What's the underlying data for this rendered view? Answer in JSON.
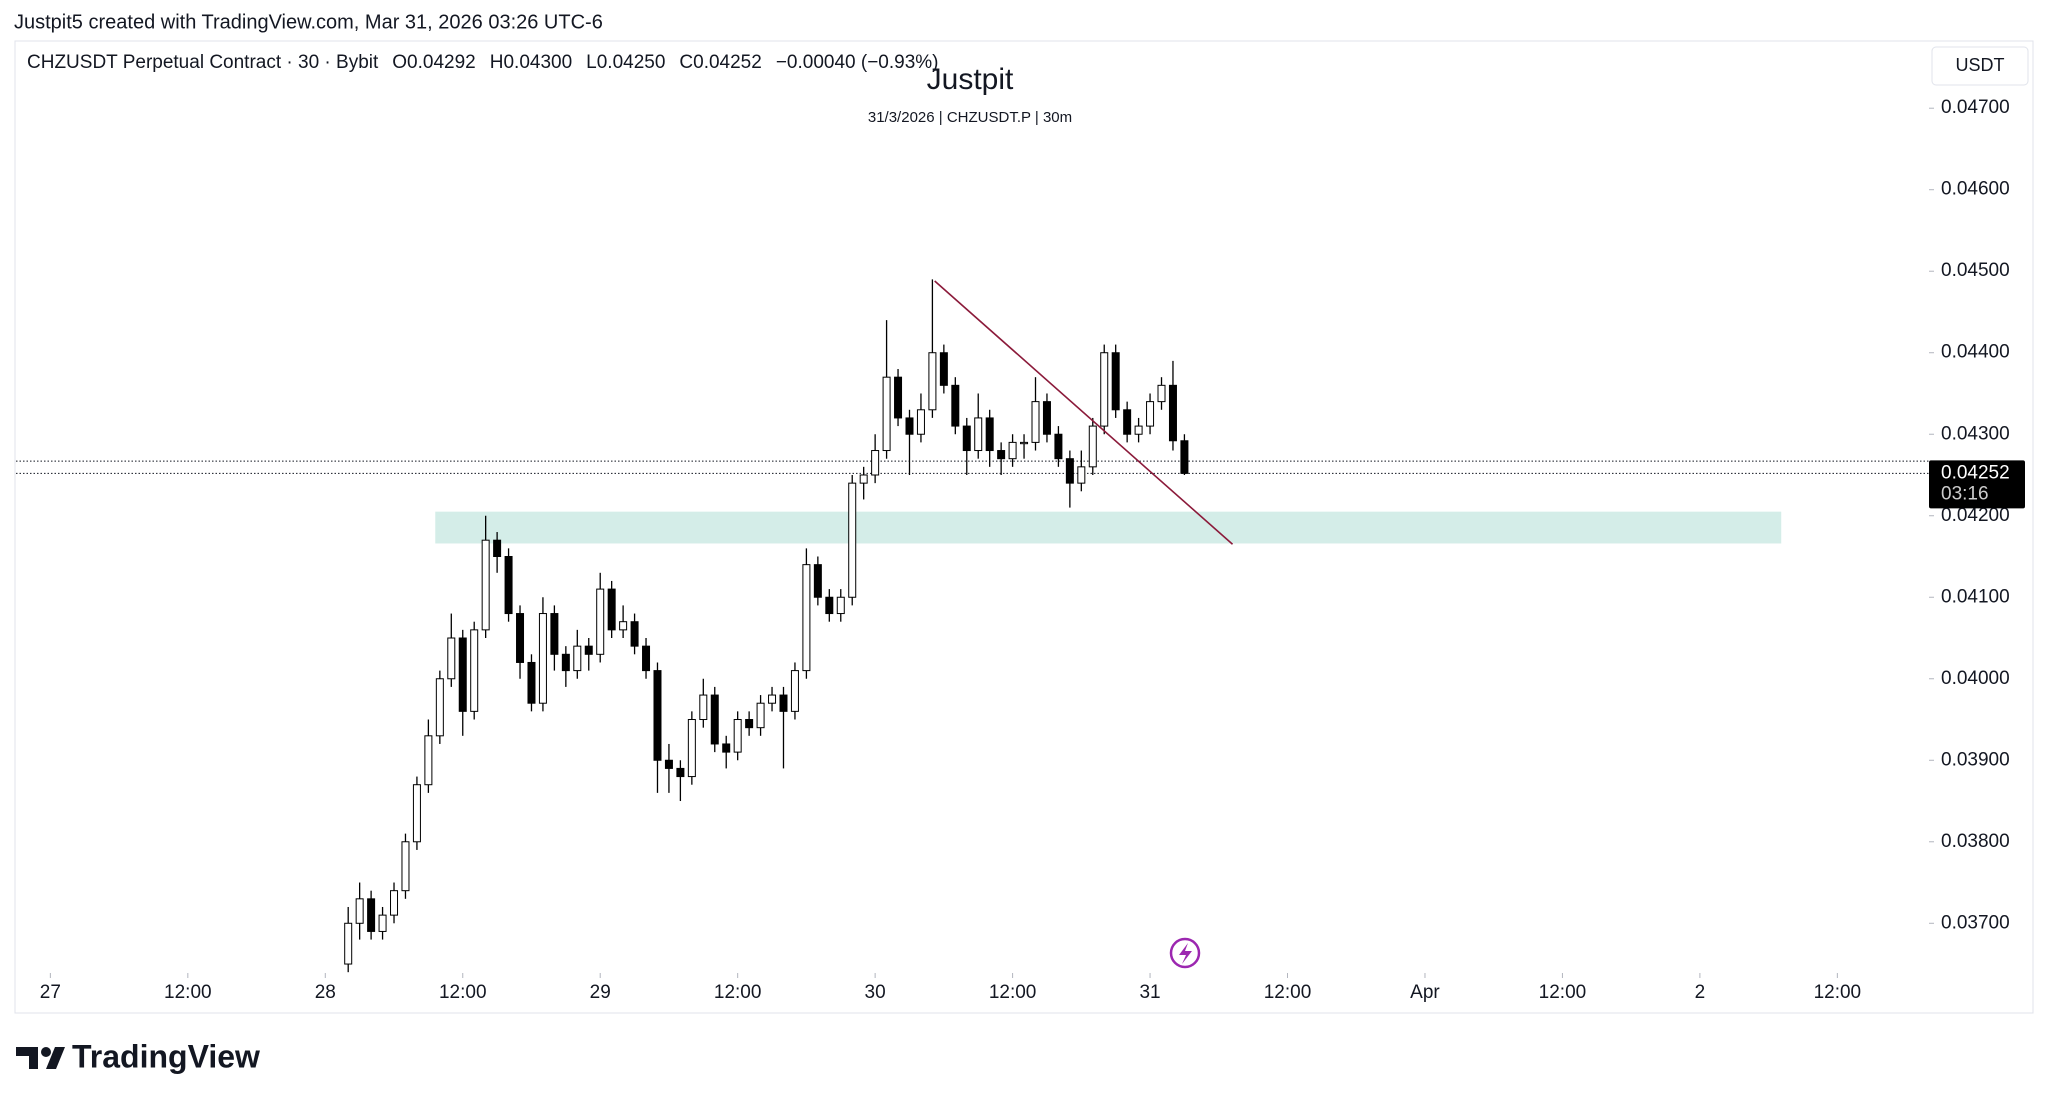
{
  "attribution": "Justpit5 created with TradingView.com, Mar 31, 2026 03:26 UTC-6",
  "logo": "TradingView",
  "chart_data": {
    "type": "candlestick",
    "title": "Justpit",
    "subtitle": "31/3/2026 | CHZUSDT.P | 30m",
    "header": [
      "CHZUSDT Perpetual Contract · 30 · Bybit",
      "O0.04292",
      "H0.04300",
      "L0.04250",
      "C0.04252",
      "−0.00040 (−0.93%)"
    ],
    "currency": "USDT",
    "x": [
      26,
      27,
      28,
      29,
      30,
      31,
      32,
      33,
      34,
      35,
      36,
      37,
      38,
      39,
      40,
      41,
      42,
      43,
      44,
      45,
      46,
      47,
      48,
      49,
      50,
      51,
      52,
      53,
      54,
      55,
      56,
      57,
      58,
      59,
      60,
      61,
      62,
      63,
      64,
      65,
      66,
      67,
      68,
      69,
      70,
      71,
      72,
      73,
      74,
      75,
      76,
      77,
      78,
      79,
      80,
      81,
      82,
      83,
      84,
      85,
      86,
      87,
      88,
      89,
      90,
      91,
      92,
      93,
      94,
      95,
      96,
      97,
      98,
      99
    ],
    "open": [
      0.0365,
      0.037,
      0.0373,
      0.0369,
      0.0371,
      0.0374,
      0.038,
      0.0387,
      0.0393,
      0.04,
      0.0405,
      0.0396,
      0.0406,
      0.0417,
      0.0415,
      0.0408,
      0.0402,
      0.0397,
      0.0408,
      0.0403,
      0.0401,
      0.0404,
      0.0403,
      0.0411,
      0.0406,
      0.0407,
      0.0404,
      0.0401,
      0.039,
      0.0389,
      0.0388,
      0.0395,
      0.0398,
      0.0392,
      0.0391,
      0.0395,
      0.0394,
      0.0397,
      0.0398,
      0.0396,
      0.0401,
      0.0414,
      0.041,
      0.0408,
      0.041,
      0.0424,
      0.0425,
      0.0428,
      0.0437,
      0.0432,
      0.043,
      0.0433,
      0.044,
      0.0436,
      0.0431,
      0.0428,
      0.0432,
      0.0428,
      0.0427,
      0.0429,
      0.0429,
      0.0434,
      0.043,
      0.0427,
      0.0424,
      0.0426,
      0.0431,
      0.044,
      0.0433,
      0.043,
      0.0431,
      0.0434,
      0.0436,
      0.04292
    ],
    "high": [
      0.0372,
      0.0375,
      0.0374,
      0.0372,
      0.0375,
      0.0381,
      0.0388,
      0.0395,
      0.0401,
      0.0408,
      0.0406,
      0.0407,
      0.042,
      0.0418,
      0.0416,
      0.0409,
      0.0403,
      0.041,
      0.0409,
      0.0404,
      0.0406,
      0.0405,
      0.0413,
      0.0412,
      0.0409,
      0.0408,
      0.0405,
      0.0402,
      0.0392,
      0.039,
      0.0396,
      0.04,
      0.0399,
      0.0393,
      0.0396,
      0.0396,
      0.0398,
      0.0399,
      0.0399,
      0.0402,
      0.0416,
      0.0415,
      0.0411,
      0.0411,
      0.0425,
      0.0426,
      0.043,
      0.0444,
      0.0438,
      0.0433,
      0.0435,
      0.0449,
      0.0441,
      0.0437,
      0.0432,
      0.0435,
      0.0433,
      0.0429,
      0.043,
      0.043,
      0.0437,
      0.0435,
      0.0431,
      0.0428,
      0.0428,
      0.0432,
      0.0441,
      0.0441,
      0.0434,
      0.0432,
      0.0435,
      0.0437,
      0.0439,
      0.043
    ],
    "low": [
      0.0364,
      0.0368,
      0.0368,
      0.0368,
      0.037,
      0.0373,
      0.0379,
      0.0386,
      0.0392,
      0.0399,
      0.0393,
      0.0395,
      0.0405,
      0.0413,
      0.0407,
      0.04,
      0.0396,
      0.0396,
      0.0401,
      0.0399,
      0.04,
      0.0401,
      0.0402,
      0.0405,
      0.0405,
      0.0403,
      0.04,
      0.0386,
      0.0386,
      0.0385,
      0.0387,
      0.0394,
      0.0391,
      0.0389,
      0.039,
      0.0393,
      0.0393,
      0.0396,
      0.0389,
      0.0395,
      0.04,
      0.0409,
      0.0407,
      0.0407,
      0.0409,
      0.0422,
      0.0424,
      0.0427,
      0.0431,
      0.0425,
      0.0429,
      0.0432,
      0.0435,
      0.043,
      0.0425,
      0.0427,
      0.0426,
      0.0425,
      0.0426,
      0.0427,
      0.0428,
      0.0429,
      0.0426,
      0.0421,
      0.0423,
      0.0425,
      0.043,
      0.0432,
      0.0429,
      0.0429,
      0.043,
      0.0433,
      0.0428,
      0.0425
    ],
    "close": [
      0.037,
      0.0373,
      0.0369,
      0.0371,
      0.0374,
      0.038,
      0.0387,
      0.0393,
      0.04,
      0.0405,
      0.0396,
      0.0406,
      0.0417,
      0.0415,
      0.0408,
      0.0402,
      0.0397,
      0.0408,
      0.0403,
      0.0401,
      0.0404,
      0.0403,
      0.0411,
      0.0406,
      0.0407,
      0.0404,
      0.0401,
      0.039,
      0.0389,
      0.0388,
      0.0395,
      0.0398,
      0.0392,
      0.0391,
      0.0395,
      0.0394,
      0.0397,
      0.0398,
      0.0396,
      0.0401,
      0.0414,
      0.041,
      0.0408,
      0.041,
      0.0424,
      0.0425,
      0.0428,
      0.0437,
      0.0432,
      0.043,
      0.0433,
      0.044,
      0.0436,
      0.0431,
      0.0428,
      0.0432,
      0.0428,
      0.0427,
      0.0429,
      0.0429,
      0.0434,
      0.043,
      0.0427,
      0.0424,
      0.0426,
      0.0431,
      0.044,
      0.0433,
      0.043,
      0.0431,
      0.0434,
      0.0436,
      0.04292,
      0.04252
    ],
    "up_color": "#ffffff",
    "down_color": "#000000",
    "wick_color": "#000000",
    "xlim": [
      -3,
      164
    ],
    "ylim": [
      0.03639,
      0.0478
    ],
    "xticks": [
      {
        "value": 0,
        "label": "27"
      },
      {
        "value": 12,
        "label": "12:00"
      },
      {
        "value": 24,
        "label": "28"
      },
      {
        "value": 36,
        "label": "12:00"
      },
      {
        "value": 48,
        "label": "29"
      },
      {
        "value": 60,
        "label": "12:00"
      },
      {
        "value": 72,
        "label": "30"
      },
      {
        "value": 84,
        "label": "12:00"
      },
      {
        "value": 96,
        "label": "31"
      },
      {
        "value": 108,
        "label": "12:00"
      },
      {
        "value": 120,
        "label": "Apr"
      },
      {
        "value": 132,
        "label": "12:00"
      },
      {
        "value": 144,
        "label": "2"
      },
      {
        "value": 156,
        "label": "12:00"
      }
    ],
    "yticks": [
      {
        "value": 0.037,
        "label": "0.03700"
      },
      {
        "value": 0.038,
        "label": "0.03800"
      },
      {
        "value": 0.039,
        "label": "0.03900"
      },
      {
        "value": 0.04,
        "label": "0.04000"
      },
      {
        "value": 0.041,
        "label": "0.04100"
      },
      {
        "value": 0.042,
        "label": "0.04200"
      },
      {
        "value": 0.043,
        "label": "0.04300"
      },
      {
        "value": 0.044,
        "label": "0.04400"
      },
      {
        "value": 0.045,
        "label": "0.04500"
      },
      {
        "value": 0.046,
        "label": "0.04600"
      },
      {
        "value": 0.047,
        "label": "0.04700"
      }
    ],
    "last_price": {
      "value": 0.04252,
      "label": "0.04252"
    },
    "countdown": "03:16",
    "price_lines": [
      0.04252,
      0.04267
    ],
    "zone": {
      "x": [
        33.6,
        151.1
      ],
      "y": [
        0.04166,
        0.04205
      ],
      "color": "#d4ede8"
    },
    "trendline": {
      "x": [
        77.2,
        103.2
      ],
      "y": [
        0.04488,
        0.04165
      ],
      "color": "#8b1a3a"
    }
  }
}
